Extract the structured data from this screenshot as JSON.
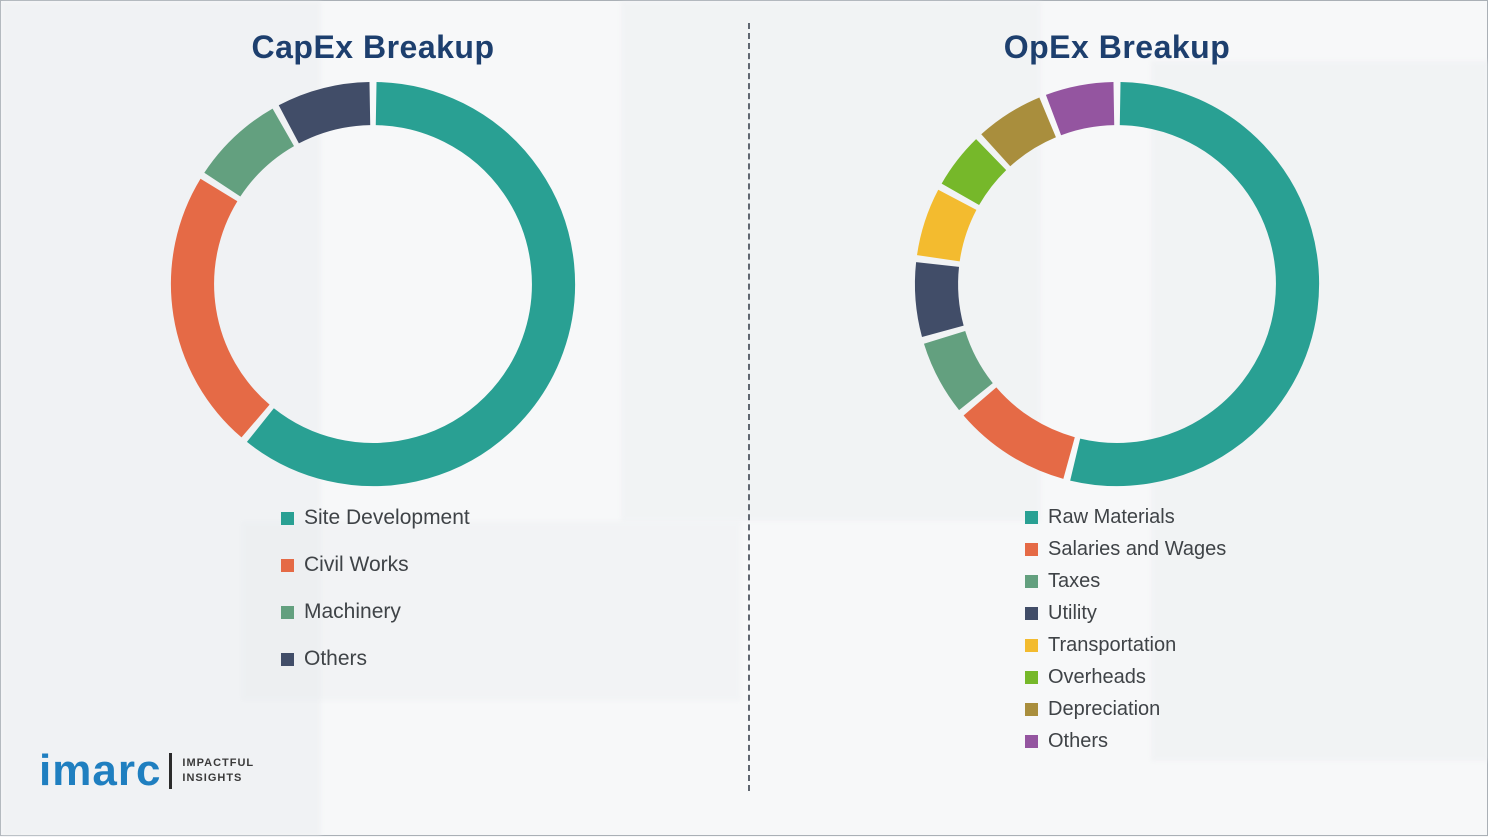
{
  "chart_data": [
    {
      "type": "pie",
      "donut": true,
      "title": "CapEx Breakup",
      "labels": [
        "Site Development",
        "Civil Works",
        "Machinery",
        "Others"
      ],
      "values": [
        61,
        23,
        8,
        8
      ],
      "colors": [
        "#29a093",
        "#e56a46",
        "#63a07f",
        "#414d68"
      ],
      "legend_position": "bottom-left",
      "legend_style": "loose"
    },
    {
      "type": "pie",
      "donut": true,
      "title": "OpEx Breakup",
      "labels": [
        "Raw Materials",
        "Salaries and Wages",
        "Taxes",
        "Utility",
        "Transportation",
        "Overheads",
        "Depreciation",
        "Others"
      ],
      "values": [
        54,
        10,
        6.5,
        6.5,
        6,
        5,
        6,
        6
      ],
      "colors": [
        "#29a093",
        "#e56a46",
        "#63a07f",
        "#414d68",
        "#f3bb2f",
        "#76b82a",
        "#a98e3d",
        "#9455a0"
      ],
      "legend_position": "bottom-left",
      "legend_style": "tight"
    }
  ],
  "logo": {
    "brand": "imarc",
    "tagline_line1": "IMPACTFUL",
    "tagline_line2": "INSIGHTS"
  }
}
